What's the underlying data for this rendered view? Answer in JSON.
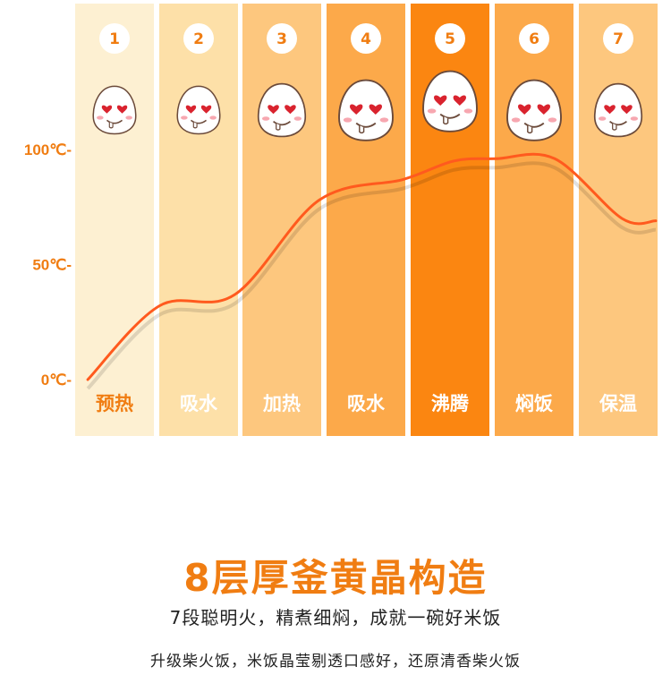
{
  "chart_data": {
    "type": "line",
    "categories": [
      "预热",
      "吸水",
      "加热",
      "吸水",
      "沸腾",
      "焖饭",
      "保温"
    ],
    "step_numbers": [
      "1",
      "2",
      "3",
      "4",
      "5",
      "6",
      "7"
    ],
    "y_ticks": [
      "0℃-",
      "50℃-",
      "100℃-"
    ],
    "y_tick_values": [
      0,
      50,
      100
    ],
    "ylim": [
      0,
      100
    ],
    "x": [
      0.15,
      1.0,
      1.9,
      2.9,
      3.9,
      4.5,
      5.0,
      5.7,
      6.5,
      6.9
    ],
    "values": [
      0,
      32,
      37,
      78,
      87,
      95,
      96,
      96,
      70,
      69
    ],
    "grid": false,
    "column_colors": [
      "#fdf0d2",
      "#fde0a8",
      "#fdc77e",
      "#fca94a",
      "#fb8611",
      "#fca94a",
      "#fdc77e"
    ],
    "label_colors": [
      "#f07d12",
      "#ffffff",
      "#ffffff",
      "#ffffff",
      "#ffffff",
      "#ffffff",
      "#ffffff"
    ],
    "line_color": "#ff5a1e",
    "axis_label_color": "#f07d12",
    "icon": "rice-grain-heart-eyes-icon"
  },
  "headline": "8层厚釜黄晶构造",
  "subline": "7段聪明火，精煮细焖，成就一碗好米饭",
  "footline": "升级柴火饭，米饭晶莹剔透口感好，还原清香柴火饭"
}
